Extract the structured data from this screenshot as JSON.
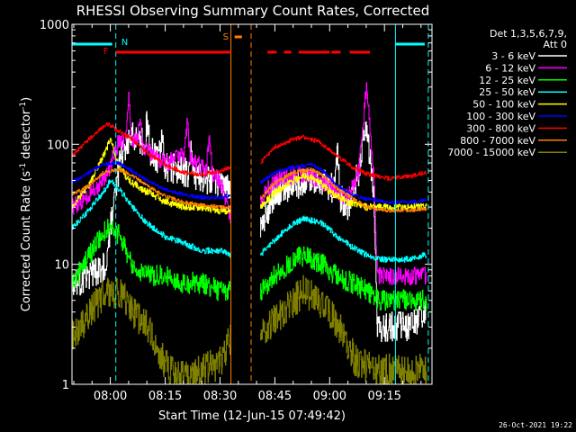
{
  "chart_data": {
    "type": "line",
    "title": "RHESSI Observing Summary Count Rates, Corrected",
    "xlabel": "Start Time (12-Jun-15 07:49:42)",
    "ylabel": "Corrected Count Rate (s",
    "ylabel_sup1": "-1",
    "ylabel_mid": " detector",
    "ylabel_sup2": "-1",
    "ylabel_end": ")",
    "yscale": "log",
    "ylim": [
      1,
      1000
    ],
    "xlim_minutes": [
      -10.5,
      88
    ],
    "x_ticks": [
      {
        "min": 0,
        "label": "08:00"
      },
      {
        "min": 15,
        "label": "08:15"
      },
      {
        "min": 30,
        "label": "08:30"
      },
      {
        "min": 45,
        "label": "08:45"
      },
      {
        "min": 60,
        "label": "09:00"
      },
      {
        "min": 75,
        "label": "09:15"
      }
    ],
    "y_ticks": [
      {
        "value": 1,
        "label": "1"
      },
      {
        "value": 10,
        "label": "10"
      },
      {
        "value": 100,
        "label": "100"
      },
      {
        "value": 1000,
        "label": "1000"
      }
    ],
    "legend_header": [
      "Det 1,3,5,6,7,9,",
      "Att 0"
    ],
    "legend_location": "right",
    "gap_minutes": [
      33,
      41
    ],
    "series": [
      {
        "name": "3 - 6 keV",
        "color": "#ffffff",
        "base": [
          [
            -10.5,
            7
          ],
          [
            -5,
            8
          ],
          [
            -1,
            10
          ],
          [
            1,
            40
          ],
          [
            3,
            80
          ],
          [
            6,
            120
          ],
          [
            10,
            95
          ],
          [
            15,
            65
          ],
          [
            20,
            60
          ],
          [
            25,
            52
          ],
          [
            30,
            48
          ],
          [
            33,
            42
          ]
        ],
        "base2": [
          [
            41,
            20
          ],
          [
            45,
            40
          ],
          [
            50,
            45
          ],
          [
            55,
            50
          ],
          [
            60,
            45
          ],
          [
            65,
            30
          ],
          [
            68,
            60
          ],
          [
            70,
            150
          ],
          [
            72,
            40
          ],
          [
            73,
            3
          ],
          [
            78,
            3
          ],
          [
            82,
            3
          ],
          [
            86,
            4
          ]
        ],
        "noise": 0.25,
        "spikes": [
          [
            10,
            150
          ],
          [
            14,
            110
          ],
          [
            22,
            90
          ],
          [
            62,
            85
          ]
        ]
      },
      {
        "name": "6 - 12 keV",
        "color": "#ff00ff",
        "base": [
          [
            -10.5,
            30
          ],
          [
            -5,
            40
          ],
          [
            -1,
            55
          ],
          [
            2,
            100
          ],
          [
            6,
            110
          ],
          [
            10,
            90
          ],
          [
            15,
            70
          ],
          [
            20,
            80
          ],
          [
            25,
            65
          ],
          [
            30,
            50
          ],
          [
            33,
            25
          ]
        ],
        "base2": [
          [
            41,
            35
          ],
          [
            45,
            50
          ],
          [
            50,
            55
          ],
          [
            55,
            55
          ],
          [
            60,
            45
          ],
          [
            65,
            35
          ],
          [
            68,
            60
          ],
          [
            70,
            300
          ],
          [
            72,
            60
          ],
          [
            73,
            8
          ],
          [
            80,
            8
          ],
          [
            86,
            8
          ]
        ],
        "noise": 0.15,
        "spikes": [
          [
            5,
            250
          ],
          [
            8,
            150
          ],
          [
            21,
            150
          ],
          [
            27,
            110
          ]
        ]
      },
      {
        "name": "12 - 25 keV",
        "color": "#00ff00",
        "base": [
          [
            -10.5,
            7
          ],
          [
            -8,
            9
          ],
          [
            -4,
            15
          ],
          [
            0,
            22
          ],
          [
            3,
            16
          ],
          [
            6,
            10
          ],
          [
            10,
            8
          ],
          [
            15,
            8
          ],
          [
            20,
            7
          ],
          [
            25,
            7
          ],
          [
            30,
            6
          ],
          [
            33,
            6
          ]
        ],
        "base2": [
          [
            41,
            6
          ],
          [
            45,
            8
          ],
          [
            50,
            11
          ],
          [
            53,
            12
          ],
          [
            58,
            10
          ],
          [
            62,
            8
          ],
          [
            66,
            7
          ],
          [
            70,
            6
          ],
          [
            74,
            5
          ],
          [
            78,
            5
          ],
          [
            82,
            5
          ],
          [
            86,
            5
          ]
        ],
        "noise": 0.18,
        "spikes": []
      },
      {
        "name": "25 - 50 keV",
        "color": "#00ffff",
        "base": [
          [
            -10.5,
            20
          ],
          [
            -6,
            28
          ],
          [
            -2,
            40
          ],
          [
            0,
            50
          ],
          [
            3,
            40
          ],
          [
            6,
            30
          ],
          [
            10,
            22
          ],
          [
            15,
            17
          ],
          [
            20,
            15
          ],
          [
            25,
            13
          ],
          [
            30,
            13
          ],
          [
            33,
            12
          ]
        ],
        "base2": [
          [
            41,
            12
          ],
          [
            45,
            16
          ],
          [
            50,
            22
          ],
          [
            53,
            24
          ],
          [
            58,
            22
          ],
          [
            62,
            17
          ],
          [
            66,
            14
          ],
          [
            70,
            12
          ],
          [
            74,
            11
          ],
          [
            78,
            11
          ],
          [
            82,
            11
          ],
          [
            86,
            12
          ]
        ],
        "noise": 0.05,
        "spikes": []
      },
      {
        "name": "50 - 100 keV",
        "color": "#ffff00",
        "base": [
          [
            -10.5,
            30
          ],
          [
            -6,
            45
          ],
          [
            -2,
            80
          ],
          [
            0,
            110
          ],
          [
            2,
            70
          ],
          [
            5,
            50
          ],
          [
            10,
            40
          ],
          [
            15,
            33
          ],
          [
            20,
            30
          ],
          [
            25,
            30
          ],
          [
            30,
            28
          ],
          [
            33,
            28
          ]
        ],
        "base2": [
          [
            41,
            30
          ],
          [
            45,
            40
          ],
          [
            50,
            50
          ],
          [
            53,
            55
          ],
          [
            57,
            50
          ],
          [
            60,
            40
          ],
          [
            65,
            33
          ],
          [
            70,
            30
          ],
          [
            74,
            30
          ],
          [
            80,
            30
          ],
          [
            86,
            30
          ]
        ],
        "noise": 0.06,
        "spikes": []
      },
      {
        "name": "100 - 300 keV",
        "color": "#0000ff",
        "base": [
          [
            -10.5,
            48
          ],
          [
            -6,
            58
          ],
          [
            -2,
            68
          ],
          [
            2,
            70
          ],
          [
            6,
            60
          ],
          [
            10,
            50
          ],
          [
            15,
            42
          ],
          [
            20,
            38
          ],
          [
            25,
            36
          ],
          [
            30,
            36
          ],
          [
            33,
            38
          ]
        ],
        "base2": [
          [
            41,
            48
          ],
          [
            45,
            58
          ],
          [
            50,
            65
          ],
          [
            55,
            68
          ],
          [
            58,
            60
          ],
          [
            62,
            45
          ],
          [
            66,
            38
          ],
          [
            70,
            35
          ],
          [
            76,
            33
          ],
          [
            82,
            33
          ],
          [
            86,
            34
          ]
        ],
        "noise": 0.03,
        "spikes": []
      },
      {
        "name": "300 - 800 keV",
        "color": "#ff0000",
        "base": [
          [
            -10.5,
            80
          ],
          [
            -6,
            110
          ],
          [
            -1,
            150
          ],
          [
            2,
            130
          ],
          [
            6,
            110
          ],
          [
            10,
            85
          ],
          [
            15,
            68
          ],
          [
            20,
            58
          ],
          [
            25,
            56
          ],
          [
            30,
            60
          ],
          [
            33,
            64
          ]
        ],
        "base2": [
          [
            41,
            70
          ],
          [
            45,
            95
          ],
          [
            50,
            110
          ],
          [
            53,
            115
          ],
          [
            57,
            105
          ],
          [
            62,
            80
          ],
          [
            66,
            65
          ],
          [
            70,
            57
          ],
          [
            76,
            52
          ],
          [
            82,
            54
          ],
          [
            86,
            58
          ]
        ],
        "noise": 0.035,
        "spikes": []
      },
      {
        "name": "800 - 7000 keV",
        "color": "#ff8000",
        "base": [
          [
            -10.5,
            38
          ],
          [
            -6,
            45
          ],
          [
            -2,
            58
          ],
          [
            2,
            62
          ],
          [
            6,
            55
          ],
          [
            10,
            45
          ],
          [
            15,
            37
          ],
          [
            20,
            33
          ],
          [
            25,
            31
          ],
          [
            30,
            30
          ],
          [
            33,
            30
          ]
        ],
        "base2": [
          [
            41,
            35
          ],
          [
            45,
            48
          ],
          [
            50,
            58
          ],
          [
            55,
            62
          ],
          [
            58,
            55
          ],
          [
            62,
            43
          ],
          [
            66,
            36
          ],
          [
            70,
            30
          ],
          [
            76,
            28
          ],
          [
            82,
            28
          ],
          [
            86,
            29
          ]
        ],
        "noise": 0.03,
        "spikes": []
      },
      {
        "name": "7000 - 15000 keV",
        "color": "#808000",
        "base": [
          [
            -10.5,
            2.5
          ],
          [
            -7,
            3.5
          ],
          [
            -3,
            5
          ],
          [
            0,
            6
          ],
          [
            3,
            5.5
          ],
          [
            6,
            4
          ],
          [
            10,
            3
          ],
          [
            13,
            2
          ],
          [
            16,
            1.3
          ],
          [
            20,
            1.2
          ],
          [
            25,
            1.3
          ],
          [
            30,
            1.5
          ],
          [
            33,
            2.5
          ]
        ],
        "base2": [
          [
            41,
            2.5
          ],
          [
            45,
            3.5
          ],
          [
            50,
            5
          ],
          [
            53,
            6
          ],
          [
            57,
            5
          ],
          [
            61,
            3.5
          ],
          [
            64,
            2.5
          ],
          [
            67,
            1.6
          ],
          [
            72,
            1.3
          ],
          [
            78,
            1.3
          ],
          [
            82,
            1.3
          ],
          [
            86,
            1.3
          ]
        ],
        "noise": 0.28,
        "spikes": []
      }
    ],
    "annotations": [
      {
        "label": "N",
        "min": 1,
        "color": "#00ffff"
      },
      {
        "label": "F",
        "min": 0.5,
        "color": "#ff0000"
      },
      {
        "label": "S",
        "min": 33,
        "color": "#ff8000"
      }
    ],
    "state_bars": [
      {
        "color": "#00ffff",
        "segments": [
          [
            -10.5,
            0.5
          ],
          [
            78,
            86
          ]
        ]
      },
      {
        "color": "#ff0000",
        "segments": [
          [
            1.5,
            33
          ],
          [
            43,
            45.5
          ],
          [
            47.5,
            49.5
          ],
          [
            51.5,
            60
          ],
          [
            60.5,
            63
          ],
          [
            65.5,
            71
          ]
        ]
      },
      {
        "color": "#ff8000",
        "segments": [
          [
            34,
            36
          ]
        ]
      }
    ],
    "vlines": [
      {
        "min": -10.5,
        "color": "#00ffff",
        "dash": false
      },
      {
        "min": 1.5,
        "color": "#00ffff",
        "dash": true
      },
      {
        "min": 33,
        "color": "#ff8000",
        "dash": false
      },
      {
        "min": 38.5,
        "color": "#ff8000",
        "dash": true
      },
      {
        "min": 78,
        "color": "#00ffff",
        "dash": false
      },
      {
        "min": 87,
        "color": "#00ffff",
        "dash": true
      }
    ]
  },
  "footer_date": "26-Oct-2021 19:22"
}
